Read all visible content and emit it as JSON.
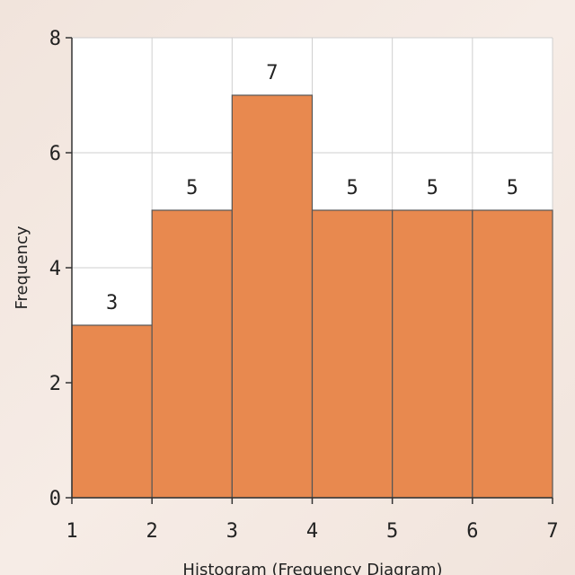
{
  "chart_data": {
    "type": "bar",
    "title": "",
    "xlabel": "Histogram (Frequency Diagram)",
    "ylabel": "Frequency",
    "bins": [
      {
        "start": 1,
        "end": 2,
        "value": 3,
        "label": "3"
      },
      {
        "start": 2,
        "end": 3,
        "value": 5,
        "label": "5"
      },
      {
        "start": 3,
        "end": 4,
        "value": 7,
        "label": "7"
      },
      {
        "start": 4,
        "end": 5,
        "value": 5,
        "label": "5"
      },
      {
        "start": 5,
        "end": 6,
        "value": 5,
        "label": "5"
      },
      {
        "start": 6,
        "end": 7,
        "value": 5,
        "label": "5"
      }
    ],
    "xlim": [
      1,
      7
    ],
    "ylim": [
      0,
      8
    ],
    "xticks": [
      "1",
      "2",
      "3",
      "4",
      "5",
      "6",
      "7"
    ],
    "yticks": [
      "0",
      "2",
      "4",
      "6",
      "8"
    ],
    "grid": true,
    "bar_color": "#e8894f",
    "bar_edge_color": "#555555"
  }
}
